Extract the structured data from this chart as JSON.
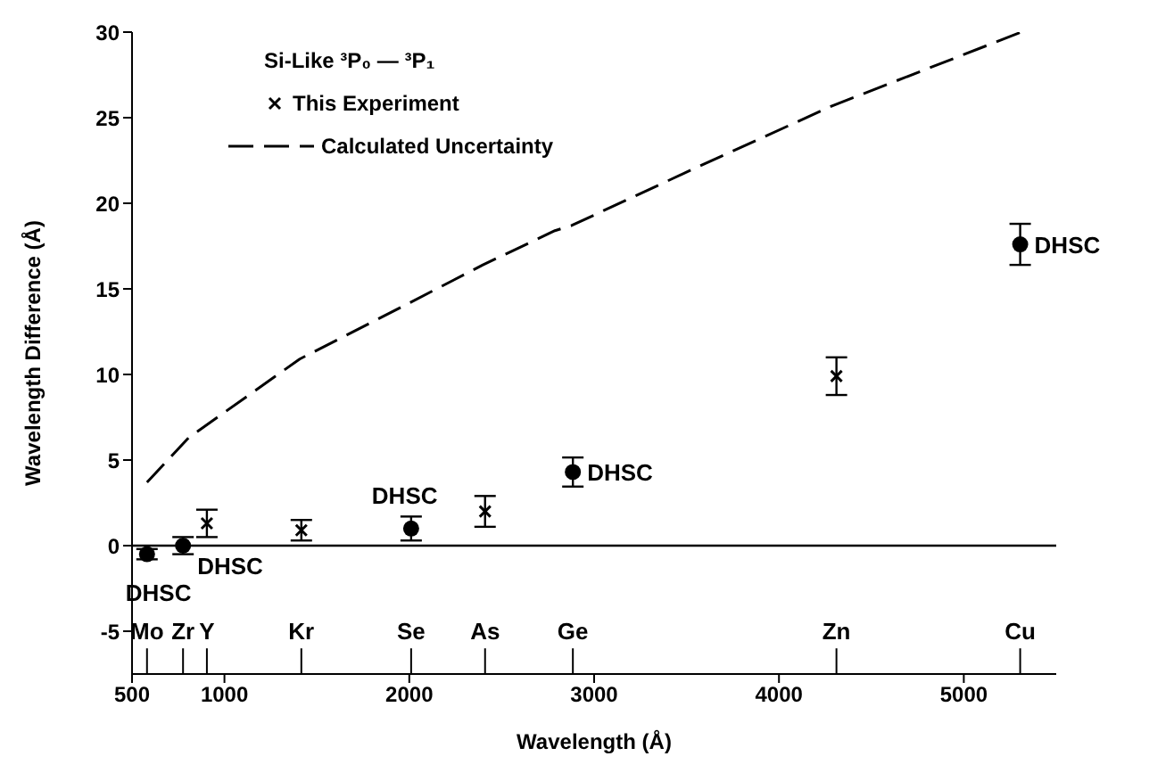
{
  "chart_data": {
    "type": "scatter",
    "xlabel": "Wavelength (Å)",
    "ylabel": "Wavelength Difference (Å)",
    "legend_title": "Si-Like ³P₀ — ³P₁",
    "xlim": [
      500,
      5500
    ],
    "xticks": [
      500,
      1000,
      2000,
      3000,
      4000,
      5000
    ],
    "ylim": [
      -7.5,
      30
    ],
    "yticks": [
      -5,
      0,
      5,
      10,
      15,
      20,
      25,
      30
    ],
    "grid": false,
    "legend": "top left",
    "series": [
      {
        "name": "This Experiment",
        "marker": "cross",
        "color": "#000000",
        "x": [
          905,
          1416,
          2410,
          4311
        ],
        "values": [
          1.3,
          0.9,
          2.0,
          9.9
        ],
        "errors": [
          0.8,
          0.6,
          0.9,
          1.1
        ]
      },
      {
        "marker": "circle",
        "color": "#000000",
        "x": [
          581,
          776,
          2010,
          2885,
          5305
        ],
        "values": [
          -0.5,
          0,
          1.0,
          4.3,
          17.6
        ],
        "errors": [
          0.3,
          0.5,
          0.7,
          0.85,
          1.2
        ]
      },
      {
        "name": "Calculated Uncertainty",
        "type": "line",
        "marker": "none",
        "line_style": "dashed",
        "color": "#000000",
        "x": [
          581,
          806,
          1407,
          2005,
          2398,
          2788,
          2878,
          3536,
          4290,
          5311
        ],
        "values": [
          3.7,
          6.3,
          10.9,
          14.2,
          16.4,
          18.4,
          18.7,
          22.0,
          25.7,
          30.0
        ]
      }
    ],
    "ref_lines": [
      {
        "axis": "y",
        "value": 0,
        "color": "#000000"
      },
      {
        "axis": "x",
        "value": 581,
        "label": "Mo"
      },
      {
        "axis": "x",
        "value": 776,
        "label": "Zr"
      },
      {
        "axis": "x",
        "value": 905,
        "label": "Y"
      },
      {
        "axis": "x",
        "value": 1416,
        "label": "Kr"
      },
      {
        "axis": "x",
        "value": 2010,
        "label": "Se"
      },
      {
        "axis": "x",
        "value": 2410,
        "label": "As"
      },
      {
        "axis": "x",
        "value": 2885,
        "label": "Ge"
      },
      {
        "axis": "x",
        "value": 4311,
        "label": "Zn"
      },
      {
        "axis": "x",
        "value": 5305,
        "label": "Cu"
      }
    ],
    "annotations": [
      {
        "text": "DHSC",
        "x": 581,
        "y": -0.5
      },
      {
        "text": "DHSC",
        "x": 776,
        "y": 0
      },
      {
        "text": "DHSC",
        "x": 2010,
        "y": 1.0
      },
      {
        "text": "DHSC",
        "x": 2885,
        "y": 4.3
      },
      {
        "text": "DHSC",
        "x": 5305,
        "y": 17.6
      }
    ]
  }
}
